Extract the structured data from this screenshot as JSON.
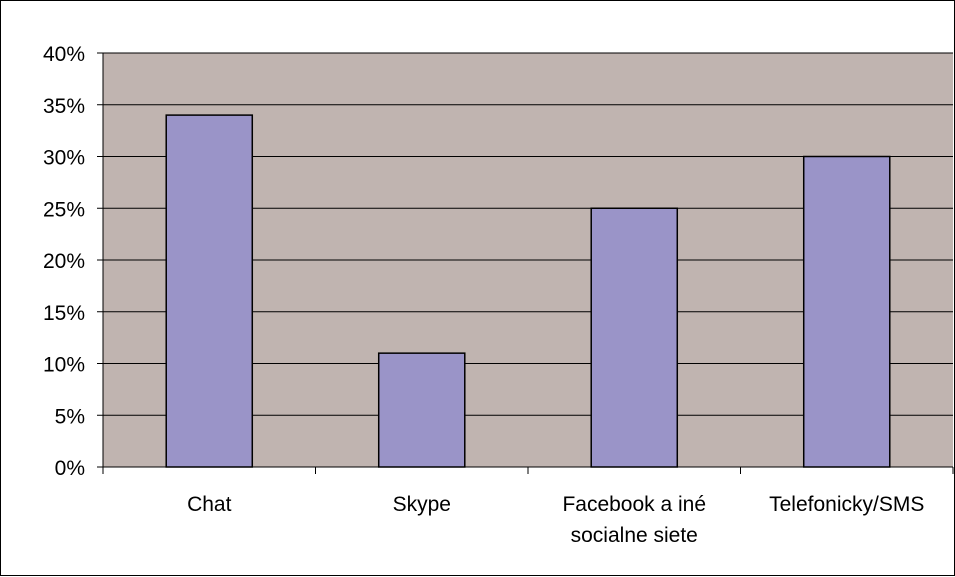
{
  "chart_data": {
    "type": "bar",
    "title": "",
    "xlabel": "",
    "ylabel": "",
    "categories": [
      [
        "Chat"
      ],
      [
        "Skype"
      ],
      [
        "Facebook a iné",
        "socialne siete"
      ],
      [
        "Telefonicky/SMS"
      ]
    ],
    "values": [
      34,
      11,
      25,
      30
    ],
    "ylim": [
      0,
      40
    ],
    "y_ticks": [
      "0%",
      "5%",
      "10%",
      "15%",
      "20%",
      "25%",
      "30%",
      "35%",
      "40%"
    ],
    "grid": true,
    "legend": "none",
    "colors": {
      "plot_background": "#c0b4b0",
      "bar_fill": "#9a94c8",
      "bar_stroke": "#000000",
      "gridline": "#000000"
    }
  }
}
